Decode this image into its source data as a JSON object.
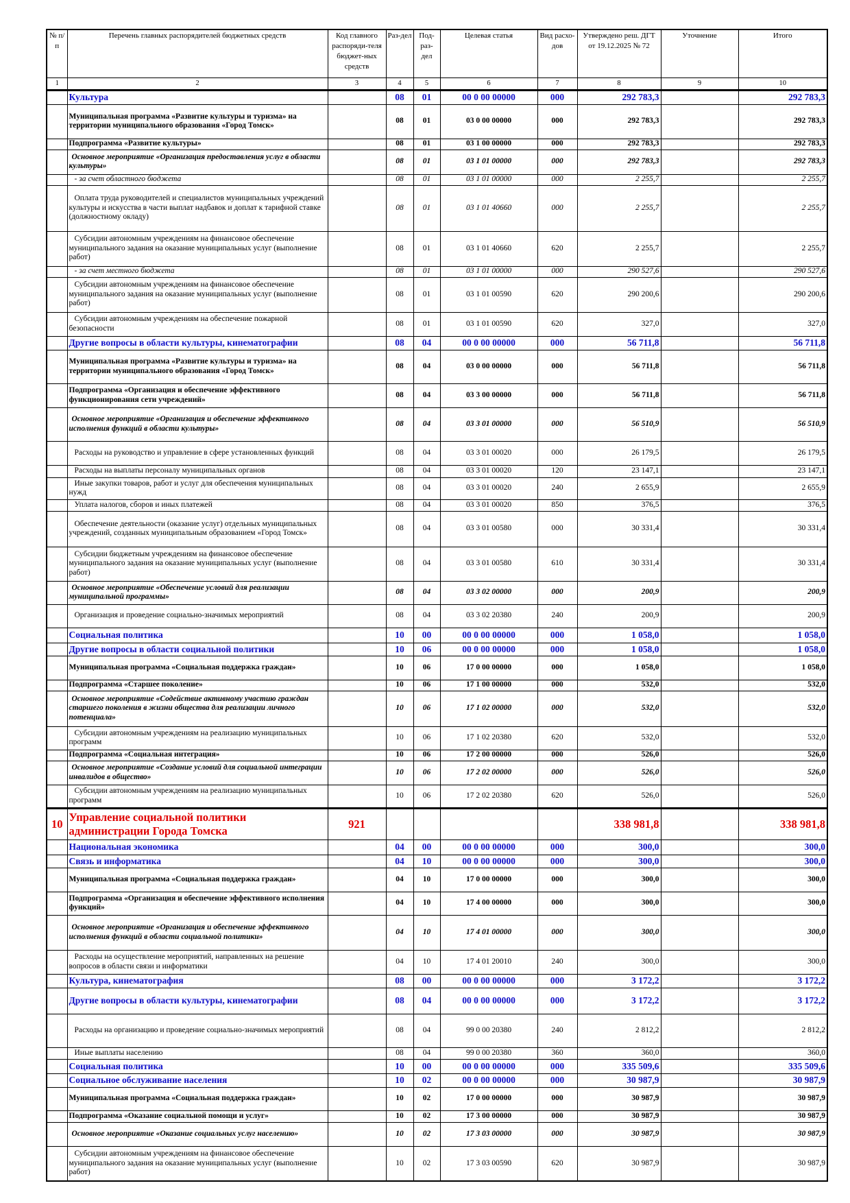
{
  "header": [
    "№ п/п",
    "Перечень главных распорядителей бюджетных средств",
    "Код главного распоряди-теля бюджет-ных средств",
    "Раз-дел",
    "Под-раз-дел",
    "Целевая статья",
    "Вид расхо-дов",
    "Утверждено реш. ДГТ от 19.12.2025 № 72",
    "Уточнение",
    "Итого"
  ],
  "column_numbers": [
    1,
    2,
    3,
    4,
    5,
    6,
    7,
    8,
    9,
    10
  ],
  "rows": [
    {
      "name": "Культура",
      "section": "08",
      "subsection": "01",
      "target": "00 0 00 00000",
      "expense_type": "000",
      "approved": "292 783,3",
      "total": "292 783,3"
    },
    {
      "name": "Муниципальная программа «Развитие культуры и туризма» на территории муниципального образования «Город Томск»",
      "section": "08",
      "subsection": "01",
      "target": "03 0 00 00000",
      "expense_type": "000",
      "approved": "292 783,3",
      "total": "292 783,3"
    },
    {
      "name": "Подпрограмма «Развитие культуры»",
      "section": "08",
      "subsection": "01",
      "target": "03 1 00 00000",
      "expense_type": "000",
      "approved": "292 783,3",
      "total": "292 783,3"
    },
    {
      "name": "Основное мероприятие «Организация предоставления услуг в области культуры»",
      "section": "08",
      "subsection": "01",
      "target": "03 1 01 00000",
      "expense_type": "000",
      "approved": "292 783,3",
      "total": "292 783,3"
    },
    {
      "name": "- за счет областного бюджета",
      "section": "08",
      "subsection": "01",
      "target": "03 1 01 00000",
      "expense_type": "000",
      "approved": "2 255,7",
      "total": "2 255,7"
    },
    {
      "name": "Оплата труда руководителей и специалистов муниципальных учреждений культуры и искусства в части выплат надбавок и доплат к тарифной ставке (должностному окладу)",
      "section": "08",
      "subsection": "01",
      "target": "03 1 01 40660",
      "expense_type": "000",
      "approved": "2 255,7",
      "total": "2 255,7"
    },
    {
      "name": "Субсидии автономным учреждениям на финансовое обеспечение муниципального задания на оказание муниципальных услуг (выполнение работ)",
      "section": "08",
      "subsection": "01",
      "target": "03 1 01 40660",
      "expense_type": "620",
      "approved": "2 255,7",
      "total": "2 255,7"
    },
    {
      "name": "- за счет местного бюджета",
      "section": "08",
      "subsection": "01",
      "target": "03 1 01 00000",
      "expense_type": "000",
      "approved": "290 527,6",
      "total": "290 527,6"
    },
    {
      "name": "Субсидии автономным учреждениям на финансовое обеспечение муниципального задания на оказание муниципальных услуг (выполнение работ)",
      "section": "08",
      "subsection": "01",
      "target": "03 1 01 00590",
      "expense_type": "620",
      "approved": "290 200,6",
      "total": "290 200,6"
    },
    {
      "name": "Субсидии автономным учреждениям на обеспечение пожарной безопасности",
      "section": "08",
      "subsection": "01",
      "target": "03 1 01 00590",
      "expense_type": "620",
      "approved": "327,0",
      "total": "327,0"
    },
    {
      "name": "Другие вопросы в области культуры, кинематографии",
      "section": "08",
      "subsection": "04",
      "target": "00 0 00 00000",
      "expense_type": "000",
      "approved": "56 711,8",
      "total": "56 711,8"
    },
    {
      "name": "Муниципальная программа «Развитие культуры и туризма» на территории муниципального образования «Город Томск»",
      "section": "08",
      "subsection": "04",
      "target": "03 0 00 00000",
      "expense_type": "000",
      "approved": "56 711,8",
      "total": "56 711,8"
    },
    {
      "name": "Подпрограмма «Организация и обеспечение эффективного функционирования сети учреждений»",
      "section": "08",
      "subsection": "04",
      "target": "03 3 00 00000",
      "expense_type": "000",
      "approved": "56 711,8",
      "total": "56 711,8"
    },
    {
      "name": "Основное мероприятие «Организация и обеспечение эффективного исполнения функций в области культуры»",
      "section": "08",
      "subsection": "04",
      "target": "03 3 01 00000",
      "expense_type": "000",
      "approved": "56 510,9",
      "total": "56 510,9"
    },
    {
      "name": "Расходы на руководство и управление в сфере установленных функций",
      "section": "08",
      "subsection": "04",
      "target": "03 3 01 00020",
      "expense_type": "000",
      "approved": "26 179,5",
      "total": "26 179,5"
    },
    {
      "name": "Расходы на выплаты персоналу муниципальных органов",
      "section": "08",
      "subsection": "04",
      "target": "03 3 01 00020",
      "expense_type": "120",
      "approved": "23 147,1",
      "total": "23 147,1"
    },
    {
      "name": "Иные закупки товаров, работ и услуг для обеспечения муниципальных нужд",
      "section": "08",
      "subsection": "04",
      "target": "03 3 01 00020",
      "expense_type": "240",
      "approved": "2 655,9",
      "total": "2 655,9"
    },
    {
      "name": "Уплата налогов, сборов и иных платежей",
      "section": "08",
      "subsection": "04",
      "target": "03 3 01 00020",
      "expense_type": "850",
      "approved": "376,5",
      "total": "376,5"
    },
    {
      "name": "Обеспечение деятельности (оказание услуг) отдельных муниципальных учреждений, созданных муниципальным образованием «Город Томск»",
      "section": "08",
      "subsection": "04",
      "target": "03 3 01 00580",
      "expense_type": "000",
      "approved": "30 331,4",
      "total": "30 331,4"
    },
    {
      "name": "Субсидии бюджетным учреждениям на финансовое обеспечение муниципального задания на оказание муниципальных услуг (выполнение работ)",
      "section": "08",
      "subsection": "04",
      "target": "03 3 01 00580",
      "expense_type": "610",
      "approved": "30 331,4",
      "total": "30 331,4"
    },
    {
      "name": "Основное мероприятие «Обеспечение условий для реализации муниципальной программы»",
      "section": "08",
      "subsection": "04",
      "target": "03 3 02 00000",
      "expense_type": "000",
      "approved": "200,9",
      "total": "200,9"
    },
    {
      "name": "Организация и проведение социально-значимых мероприятий",
      "section": "08",
      "subsection": "04",
      "target": "03 3 02 20380",
      "expense_type": "240",
      "approved": "200,9",
      "total": "200,9"
    },
    {
      "name": "Социальная политика",
      "section": "10",
      "subsection": "00",
      "target": "00 0 00 00000",
      "expense_type": "000",
      "approved": "1 058,0",
      "total": "1 058,0"
    },
    {
      "name": "Другие вопросы в области социальной политики",
      "section": "10",
      "subsection": "06",
      "target": "00 0 00 00000",
      "expense_type": "000",
      "approved": "1 058,0",
      "total": "1 058,0"
    },
    {
      "name": "Муниципальная программа «Социальная поддержка граждан»",
      "section": "10",
      "subsection": "06",
      "target": "17 0 00 00000",
      "expense_type": "000",
      "approved": "1 058,0",
      "total": "1 058,0"
    },
    {
      "name": "Подпрограмма «Старшее поколение»",
      "section": "10",
      "subsection": "06",
      "target": "17 1 00 00000",
      "expense_type": "000",
      "approved": "532,0",
      "total": "532,0"
    },
    {
      "name": "Основное мероприятие «Содействие активному участию граждан старшего поколения в жизни общества для реализации личного потенциала»",
      "section": "10",
      "subsection": "06",
      "target": "17 1 02 00000",
      "expense_type": "000",
      "approved": "532,0",
      "total": "532,0"
    },
    {
      "name": "Субсидии автономным учреждениям на реализацию муниципальных программ",
      "section": "10",
      "subsection": "06",
      "target": "17 1 02 20380",
      "expense_type": "620",
      "approved": "532,0",
      "total": "532,0"
    },
    {
      "name": "Подпрограмма «Социальная интеграция»",
      "section": "10",
      "subsection": "06",
      "target": "17 2 00 00000",
      "expense_type": "000",
      "approved": "526,0",
      "total": "526,0"
    },
    {
      "name": "Основное мероприятие «Создание условий для социальной интеграции инвалидов в общество»",
      "section": "10",
      "subsection": "06",
      "target": "17 2 02 00000",
      "expense_type": "000",
      "approved": "526,0",
      "total": "526,0"
    },
    {
      "name": "Субсидии автономным учреждениям на реализацию муниципальных программ",
      "section": "10",
      "subsection": "06",
      "target": "17 2 02 20380",
      "expense_type": "620",
      "approved": "526,0",
      "total": "526,0"
    },
    {
      "num": 10,
      "name": "Управление социальной политики администрации Города Томска",
      "code": "921",
      "approved": "338 981,8",
      "total": "338 981,8"
    },
    {
      "name": "Национальная экономика",
      "section": "04",
      "subsection": "00",
      "target": "00 0 00 00000",
      "expense_type": "000",
      "approved": "300,0",
      "total": "300,0"
    },
    {
      "name": "Связь и информатика",
      "section": "04",
      "subsection": "10",
      "target": "00 0 00 00000",
      "expense_type": "000",
      "approved": "300,0",
      "total": "300,0"
    },
    {
      "name": "Муниципальная программа «Социальная поддержка граждан»",
      "section": "04",
      "subsection": "10",
      "target": "17 0 00 00000",
      "expense_type": "000",
      "approved": "300,0",
      "total": "300,0"
    },
    {
      "name": "Подпрограмма «Организация и обеспечение эффективного исполнения функций»",
      "section": "04",
      "subsection": "10",
      "target": "17 4 00 00000",
      "expense_type": "000",
      "approved": "300,0",
      "total": "300,0"
    },
    {
      "name": "Основное мероприятие «Организация и обеспечение эффективного исполнения функций в области социальной политики»",
      "section": "04",
      "subsection": "10",
      "target": "17 4 01 00000",
      "expense_type": "000",
      "approved": "300,0",
      "total": "300,0"
    },
    {
      "name": "Расходы на осуществление мероприятий, направленных на решение вопросов в области связи и информатики",
      "section": "04",
      "subsection": "10",
      "target": "17 4 01 20010",
      "expense_type": "240",
      "approved": "300,0",
      "total": "300,0"
    },
    {
      "name": "Культура, кинематография",
      "section": "08",
      "subsection": "00",
      "target": "00 0 00 00000",
      "expense_type": "000",
      "approved": "3 172,2",
      "total": "3 172,2"
    },
    {
      "name": "Другие вопросы в области культуры, кинематографии",
      "section": "08",
      "subsection": "04",
      "target": "00 0 00 00000",
      "expense_type": "000",
      "approved": "3 172,2",
      "total": "3 172,2"
    },
    {
      "name": "Расходы на организацию и проведение социально-значимых мероприятий",
      "section": "08",
      "subsection": "04",
      "target": "99 0 00 20380",
      "expense_type": "240",
      "approved": "2 812,2",
      "total": "2 812,2"
    },
    {
      "name": "Иные выплаты населению",
      "section": "08",
      "subsection": "04",
      "target": "99 0 00 20380",
      "expense_type": "360",
      "approved": "360,0",
      "total": "360,0"
    },
    {
      "name": "Социальная политика",
      "section": "10",
      "subsection": "00",
      "target": "00 0 00 00000",
      "expense_type": "000",
      "approved": "335 509,6",
      "total": "335 509,6"
    },
    {
      "name": "Социальное обслуживание населения",
      "section": "10",
      "subsection": "02",
      "target": "00 0 00 00000",
      "expense_type": "000",
      "approved": "30 987,9",
      "total": "30 987,9"
    },
    {
      "name": "Муниципальная программа «Социальная поддержка граждан»",
      "section": "10",
      "subsection": "02",
      "target": "17 0 00 00000",
      "expense_type": "000",
      "approved": "30 987,9",
      "total": "30 987,9"
    },
    {
      "name": "Подпрограмма «Оказание социальной помощи и услуг»",
      "section": "10",
      "subsection": "02",
      "target": "17 3 00 00000",
      "expense_type": "000",
      "approved": "30 987,9",
      "total": "30 987,9"
    },
    {
      "name": "Основное мероприятие «Оказание социальных услуг населению»",
      "section": "10",
      "subsection": "02",
      "target": "17 3 03 00000",
      "expense_type": "000",
      "approved": "30 987,9",
      "total": "30 987,9"
    },
    {
      "name": "Субсидии автономным учреждениям на финансовое обеспечение муниципального задания на оказание муниципальных услуг (выполнение работ)",
      "section": "10",
      "subsection": "02",
      "target": "17 3 03 00590",
      "expense_type": "620",
      "approved": "30 987,9",
      "total": "30 987,9"
    }
  ]
}
